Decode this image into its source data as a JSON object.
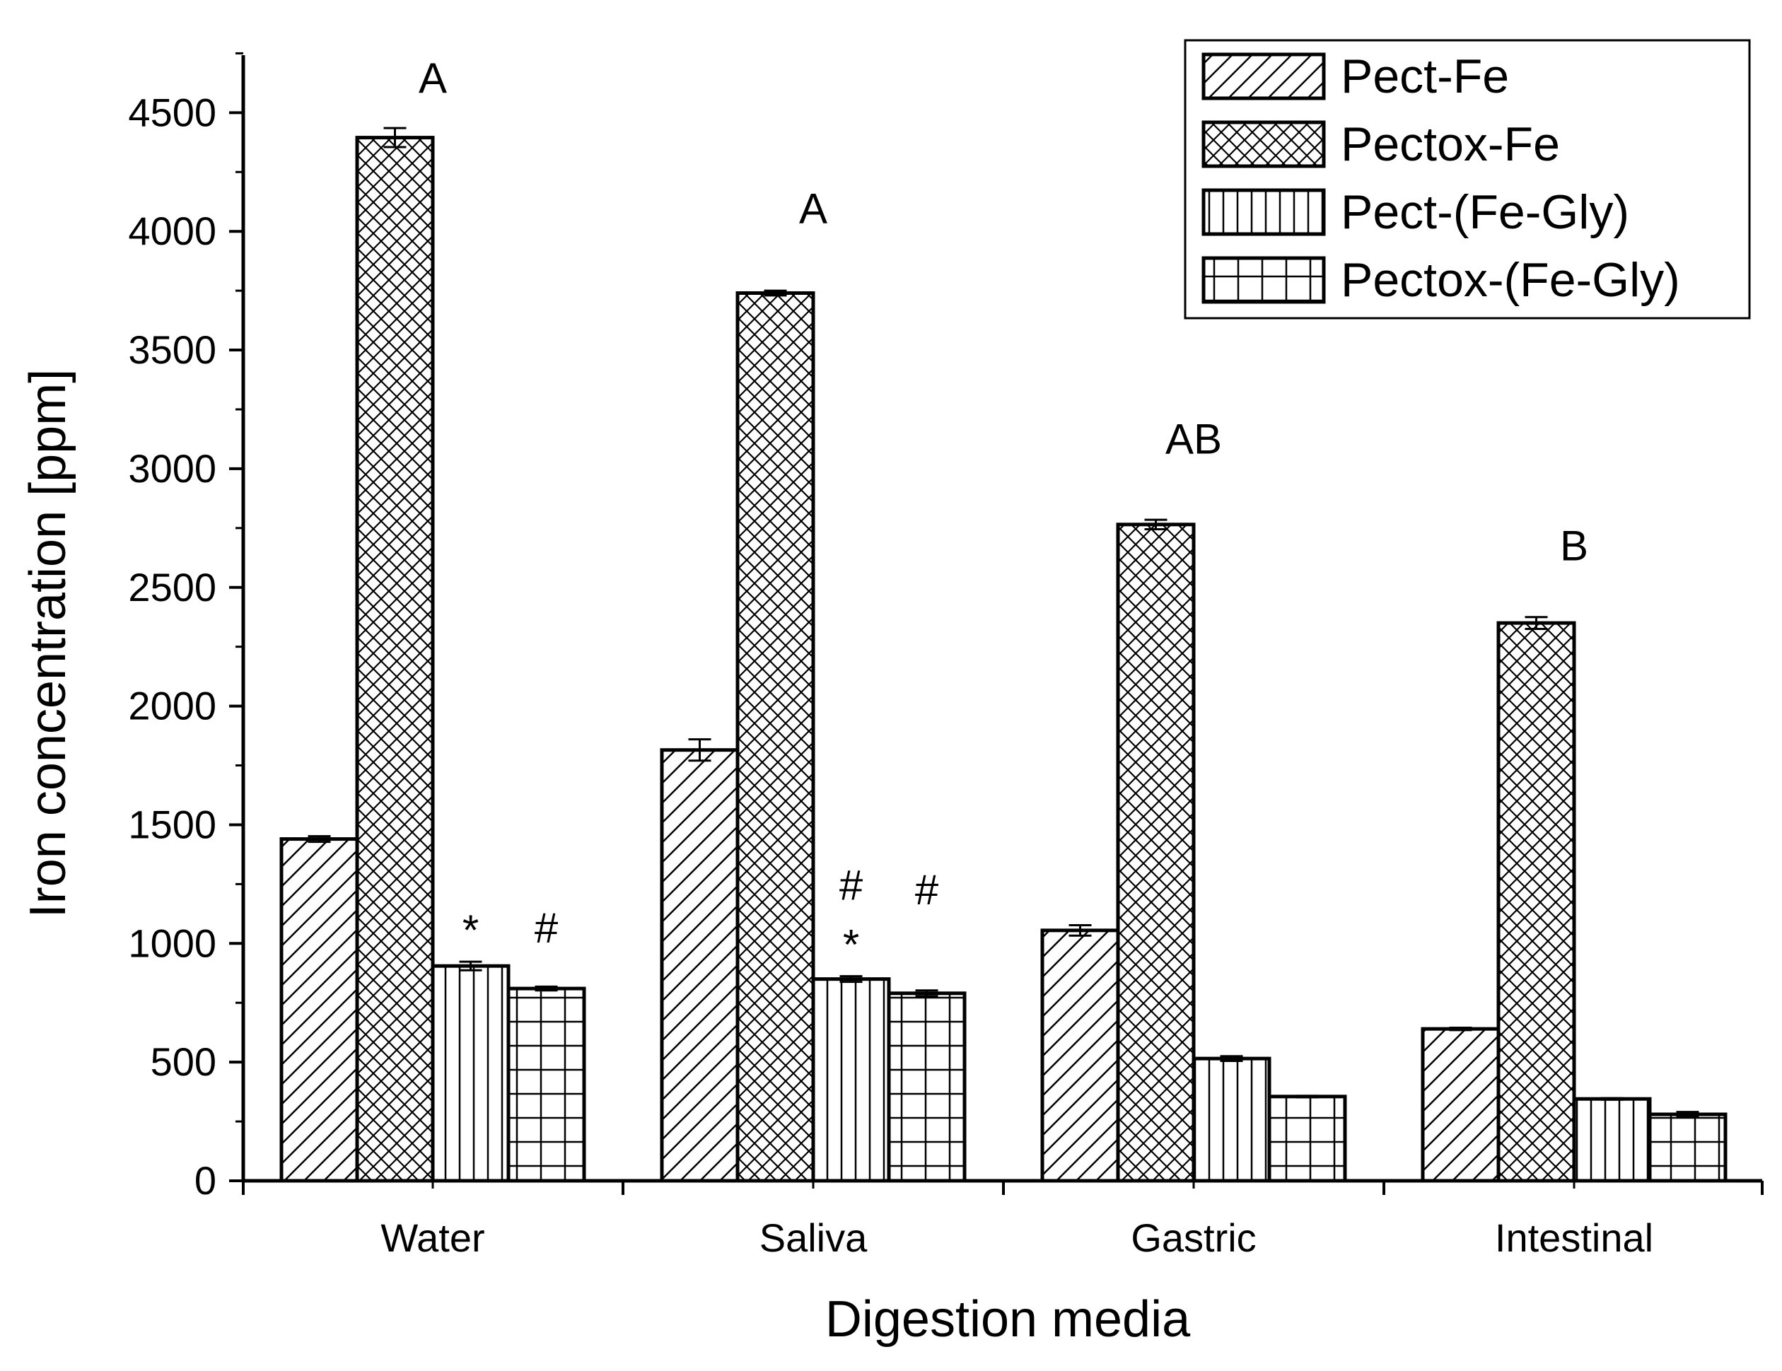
{
  "chart_data": {
    "type": "bar",
    "xlabel": "Digestion media",
    "ylabel": "Iron concentration [ppm]",
    "ylim": [
      0,
      4750
    ],
    "yticks": [
      0,
      500,
      1000,
      1500,
      2000,
      2500,
      3000,
      3500,
      4000,
      4500
    ],
    "categories": [
      "Water",
      "Saliva",
      "Gastric",
      "Intestinal"
    ],
    "series": [
      {
        "name": "Pect-Fe",
        "pattern": "diagonal",
        "values": [
          1440,
          1815,
          1055,
          640
        ],
        "errors": [
          12,
          45,
          22,
          5
        ]
      },
      {
        "name": "Pectox-Fe",
        "pattern": "crosshatch",
        "values": [
          4395,
          3740,
          2765,
          2350
        ],
        "errors": [
          40,
          10,
          20,
          25
        ]
      },
      {
        "name": "Pect-(Fe-Gly)",
        "pattern": "vertical",
        "values": [
          905,
          850,
          515,
          345
        ],
        "errors": [
          18,
          12,
          10,
          3
        ]
      },
      {
        "name": "Pectox-(Fe-Gly)",
        "pattern": "grid",
        "values": [
          810,
          790,
          355,
          280
        ],
        "errors": [
          8,
          12,
          3,
          10
        ]
      }
    ],
    "legend": "top-right",
    "annotations": [
      {
        "text": "A",
        "category": "Water",
        "value": 4650
      },
      {
        "text": "A",
        "category": "Saliva",
        "value": 4100
      },
      {
        "text": "AB",
        "category": "Gastric",
        "value": 3130
      },
      {
        "text": "B",
        "category": "Intestinal",
        "value": 2680
      },
      {
        "text": "*",
        "category": "Water",
        "series": "Pect-(Fe-Gly)",
        "value": 1060
      },
      {
        "text": "#",
        "category": "Water",
        "series": "Pectox-(Fe-Gly)",
        "value": 1070
      },
      {
        "text": "#",
        "category": "Saliva",
        "series": "Pect-(Fe-Gly)",
        "value": 1250
      },
      {
        "text": "*",
        "category": "Saliva",
        "series": "Pect-(Fe-Gly)",
        "value": 1000
      },
      {
        "text": "#",
        "category": "Saliva",
        "series": "Pectox-(Fe-Gly)",
        "value": 1230
      }
    ]
  }
}
